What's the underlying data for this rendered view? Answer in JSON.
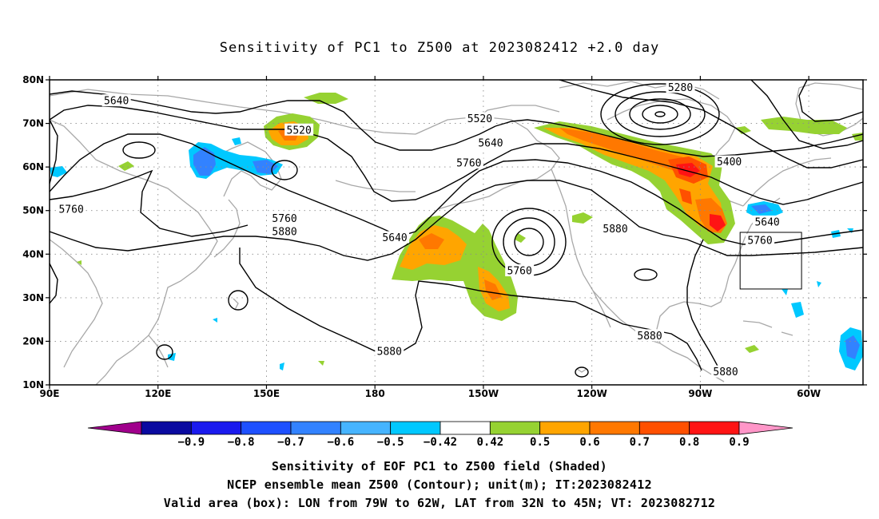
{
  "title": "Sensitivity of PC1 to Z500 at 2023082412 +2.0 day",
  "lat_ticks": [
    "80N",
    "70N",
    "60N",
    "50N",
    "40N",
    "30N",
    "20N",
    "10N"
  ],
  "lon_ticks": [
    "90E",
    "120E",
    "150E",
    "180",
    "150W",
    "120W",
    "90W",
    "60W"
  ],
  "contour_labels": [
    {
      "text": "5280",
      "lon": -95.5,
      "lat": 78.3
    },
    {
      "text": "5640",
      "lon": 108.5,
      "lat": 75.2
    },
    {
      "text": "5520",
      "lon": -151,
      "lat": 71.1
    },
    {
      "text": "5520",
      "lon": 159,
      "lat": 68.5
    },
    {
      "text": "5640",
      "lon": -148,
      "lat": 65.5
    },
    {
      "text": "5760",
      "lon": -154,
      "lat": 60.9
    },
    {
      "text": "5400",
      "lon": -82,
      "lat": 61.2
    },
    {
      "text": "5760",
      "lon": 96,
      "lat": 50.3
    },
    {
      "text": "5760",
      "lon": 155,
      "lat": 48.2
    },
    {
      "text": "5880",
      "lon": 155,
      "lat": 45.2
    },
    {
      "text": "5640",
      "lon": -174.5,
      "lat": 43.8
    },
    {
      "text": "5640",
      "lon": -71.5,
      "lat": 47.4
    },
    {
      "text": "5880",
      "lon": -113.5,
      "lat": 45.8
    },
    {
      "text": "5760",
      "lon": -73.5,
      "lat": 43.2
    },
    {
      "text": "5760",
      "lon": -140,
      "lat": 36.2
    },
    {
      "text": "5880",
      "lon": -104,
      "lat": 21.3
    },
    {
      "text": "5880",
      "lon": -176,
      "lat": 17.7
    },
    {
      "text": "5880",
      "lon": -83,
      "lat": 13.0
    }
  ],
  "valid_box": {
    "lon_from": -79,
    "lon_to": -62,
    "lat_from": 32,
    "lat_to": 45
  },
  "colorbar": {
    "colors": [
      "#a0008c",
      "#0a0aa0",
      "#1a1aee",
      "#1e50ff",
      "#3282ff",
      "#46b4ff",
      "#00c8ff",
      "#ffffff",
      "#96d232",
      "#ffa500",
      "#ff7800",
      "#ff5000",
      "#ff1414",
      "#ff96c8"
    ],
    "labels": [
      "-0.9",
      "-0.8",
      "-0.7",
      "-0.6",
      "-0.5",
      "-0.42",
      "0.42",
      "0.5",
      "0.6",
      "0.7",
      "0.8",
      "0.9"
    ]
  },
  "footer": {
    "line1": "Sensitivity of EOF PC1 to Z500 field (Shaded)",
    "line2": "NCEP ensemble mean Z500 (Contour); unit(m); IT:2023082412",
    "line3": "Valid area (box): LON from 79W to 62W, LAT from 32N to 45N; VT: 2023082712"
  }
}
